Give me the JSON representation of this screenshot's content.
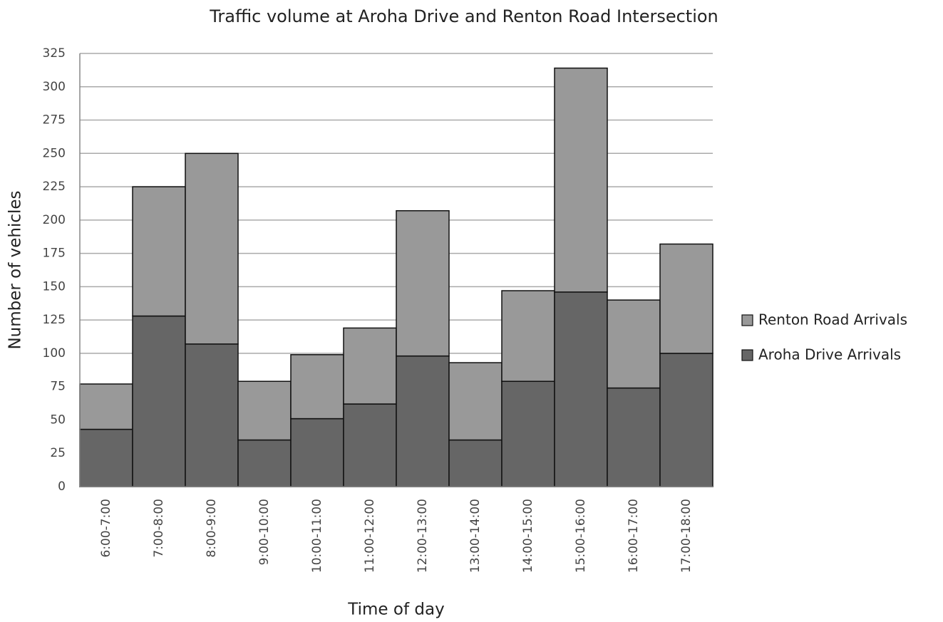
{
  "chart_data": {
    "type": "stacked_bar",
    "title": "Traffic volume at Aroha Drive and Renton Road Intersection",
    "x_label": "Time of day",
    "y_label": "Number of vehicles",
    "categories": [
      "6:00-7:00",
      "7:00-8:00",
      "8:00-9:00",
      "9:00-10:00",
      "10:00-11:00",
      "11:00-12:00",
      "12:00-13:00",
      "13:00-14:00",
      "14:00-15:00",
      "15:00-16:00",
      "16:00-17:00",
      "17:00-18:00"
    ],
    "series": [
      {
        "name": "Aroha Drive Arrivals",
        "color": "#666666",
        "values": [
          43,
          128,
          107,
          35,
          51,
          62,
          98,
          35,
          79,
          146,
          74,
          100
        ]
      },
      {
        "name": "Renton Road Arrivals",
        "color": "#999999",
        "values": [
          34,
          97,
          143,
          44,
          48,
          57,
          109,
          58,
          68,
          168,
          66,
          82
        ]
      }
    ],
    "ylim": [
      0,
      325
    ],
    "yticks": [
      0,
      25,
      50,
      75,
      100,
      125,
      150,
      175,
      200,
      225,
      250,
      275,
      300,
      325
    ],
    "grid": true,
    "legend": "right"
  }
}
